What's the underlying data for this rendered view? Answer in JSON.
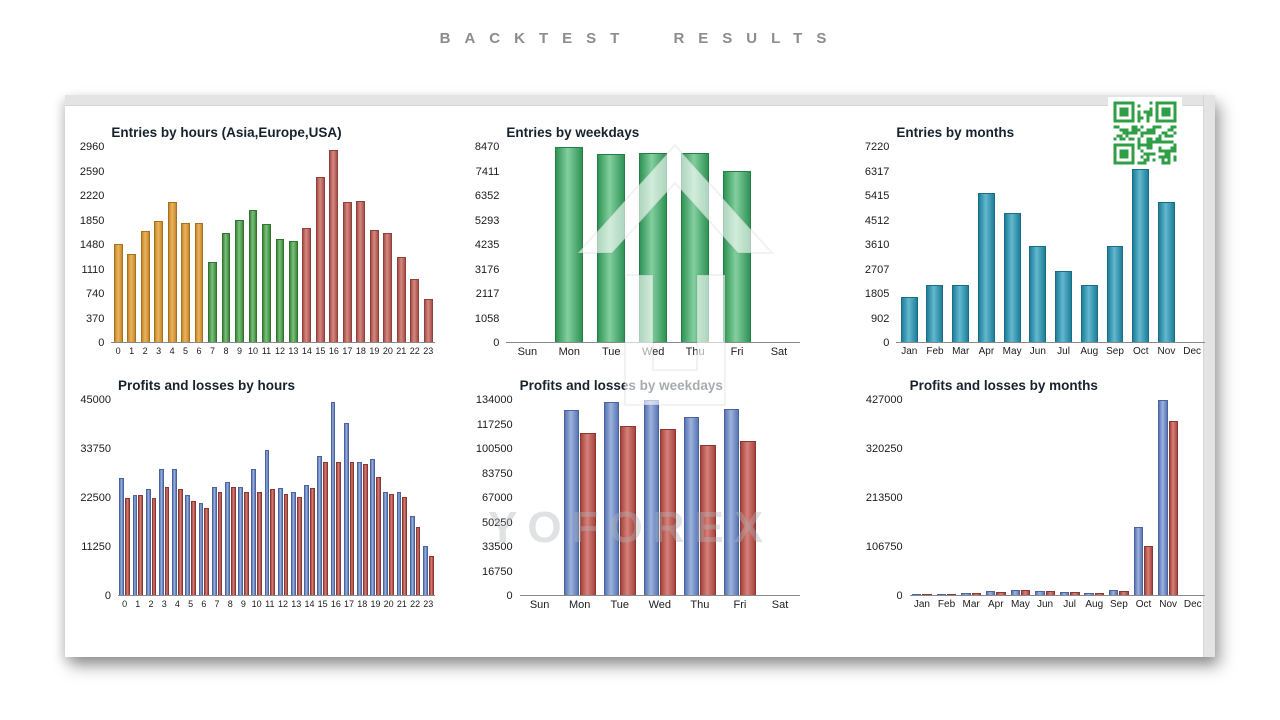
{
  "header": {
    "title": "BACKTEST RESULTS"
  },
  "watermark": {
    "text": "YOFOREX"
  },
  "colors": {
    "orange": "#dfa23e",
    "green": "#4ea04e",
    "red": "#c4635c",
    "weekday_green": "#3f9e63",
    "teal": "#2e93ae",
    "profit_blue": "#7289c4",
    "loss_red": "#c4564e",
    "qr_green": "#2f9e44",
    "chart_title_text": "#16222e",
    "header_text": "#8c8c8c"
  },
  "chart_data": [
    {
      "type": "bar",
      "title": "Entries by hours (Asia,Europe,USA)",
      "categories": [
        "0",
        "1",
        "2",
        "3",
        "4",
        "5",
        "6",
        "7",
        "8",
        "9",
        "10",
        "11",
        "12",
        "13",
        "14",
        "15",
        "16",
        "17",
        "18",
        "19",
        "20",
        "21",
        "22",
        "23"
      ],
      "values": [
        1490,
        1330,
        1690,
        1840,
        2130,
        1810,
        1810,
        1210,
        1650,
        1850,
        2010,
        1790,
        1560,
        1530,
        1730,
        2510,
        2910,
        2130,
        2140,
        1700,
        1650,
        1290,
        960,
        660
      ],
      "bar_colors": [
        "orange",
        "orange",
        "orange",
        "orange",
        "orange",
        "orange",
        "orange",
        "green",
        "green",
        "green",
        "green",
        "green",
        "green",
        "green",
        "red",
        "red",
        "red",
        "red",
        "red",
        "red",
        "red",
        "red",
        "red",
        "red"
      ],
      "yticks": [
        0,
        370,
        740,
        1110,
        1480,
        1850,
        2220,
        2590,
        2960
      ],
      "ylim": [
        0,
        2960
      ],
      "grid": false,
      "legend": "none"
    },
    {
      "type": "bar",
      "title": "Entries by weekdays",
      "categories": [
        "Sun",
        "Mon",
        "Tue",
        "Wed",
        "Thu",
        "Fri",
        "Sat"
      ],
      "values": [
        0,
        8470,
        8150,
        8230,
        8230,
        7420,
        0
      ],
      "color": "green2",
      "yticks": [
        0,
        1058,
        2117,
        3176,
        4235,
        5293,
        6352,
        7411,
        8470
      ],
      "ylim": [
        0,
        8470
      ],
      "grid": false,
      "legend": "none"
    },
    {
      "type": "bar",
      "title": "Entries by months",
      "categories": [
        "Jan",
        "Feb",
        "Mar",
        "Apr",
        "May",
        "Jun",
        "Jul",
        "Aug",
        "Sep",
        "Oct",
        "Nov",
        "Dec"
      ],
      "values": [
        1650,
        2100,
        2100,
        5520,
        4760,
        3550,
        2620,
        2100,
        3550,
        6400,
        5200,
        0
      ],
      "color": "teal",
      "yticks": [
        0,
        902,
        1805,
        2707,
        3610,
        4512,
        5415,
        6317,
        7220
      ],
      "ylim": [
        0,
        7220
      ],
      "grid": false,
      "legend": "none"
    },
    {
      "type": "bar",
      "title": "Profits and losses by hours",
      "categories": [
        "0",
        "1",
        "2",
        "3",
        "4",
        "5",
        "6",
        "7",
        "8",
        "9",
        "10",
        "11",
        "12",
        "13",
        "14",
        "15",
        "16",
        "17",
        "18",
        "19",
        "20",
        "21",
        "22",
        "23"
      ],
      "series": [
        {
          "name": "Profits",
          "color": "blue",
          "values": [
            27000,
            23000,
            24500,
            29000,
            29000,
            23000,
            21300,
            25000,
            26000,
            25000,
            29000,
            33400,
            24600,
            23700,
            25300,
            32000,
            44500,
            39800,
            30800,
            31300,
            23700,
            23700,
            18200,
            11400
          ]
        },
        {
          "name": "Losses",
          "color": "lossred",
          "values": [
            22500,
            23000,
            22500,
            25000,
            24500,
            21800,
            20100,
            23700,
            25000,
            23700,
            23700,
            24400,
            23200,
            22700,
            24600,
            30800,
            30800,
            30800,
            30300,
            27200,
            23200,
            22700,
            15600,
            9000
          ]
        }
      ],
      "yticks": [
        0,
        11250,
        22500,
        33750,
        45000
      ],
      "ylim": [
        0,
        45000
      ],
      "grid": false,
      "legend": "none"
    },
    {
      "type": "bar",
      "title": "Profits and losses by weekdays",
      "categories": [
        "Sun",
        "Mon",
        "Tue",
        "Wed",
        "Thu",
        "Fri",
        "Sat"
      ],
      "series": [
        {
          "name": "Profits",
          "color": "blue",
          "values": [
            0,
            127000,
            132500,
            134000,
            122500,
            128000,
            0
          ]
        },
        {
          "name": "Losses",
          "color": "lossred",
          "values": [
            0,
            111000,
            116000,
            114000,
            103000,
            106000,
            0
          ]
        }
      ],
      "yticks": [
        0,
        16750,
        33500,
        50250,
        67000,
        83750,
        100500,
        117250,
        134000
      ],
      "ylim": [
        0,
        134000
      ],
      "grid": false,
      "legend": "none"
    },
    {
      "type": "bar",
      "title": "Profits and losses by months",
      "categories": [
        "Jan",
        "Feb",
        "Mar",
        "Apr",
        "May",
        "Jun",
        "Jul",
        "Aug",
        "Sep",
        "Oct",
        "Nov",
        "Dec"
      ],
      "series": [
        {
          "name": "Profits",
          "color": "blue",
          "values": [
            3000,
            3000,
            4000,
            8000,
            12000,
            8500,
            7000,
            4500,
            10000,
            150000,
            427000,
            0
          ]
        },
        {
          "name": "Losses",
          "color": "lossred",
          "values": [
            2500,
            2500,
            3500,
            7000,
            10000,
            8000,
            6000,
            4000,
            8000,
            107000,
            382000,
            0
          ]
        }
      ],
      "yticks": [
        0,
        106750,
        213500,
        320250,
        427000
      ],
      "ylim": [
        0,
        427000
      ],
      "grid": false,
      "legend": "none"
    }
  ]
}
